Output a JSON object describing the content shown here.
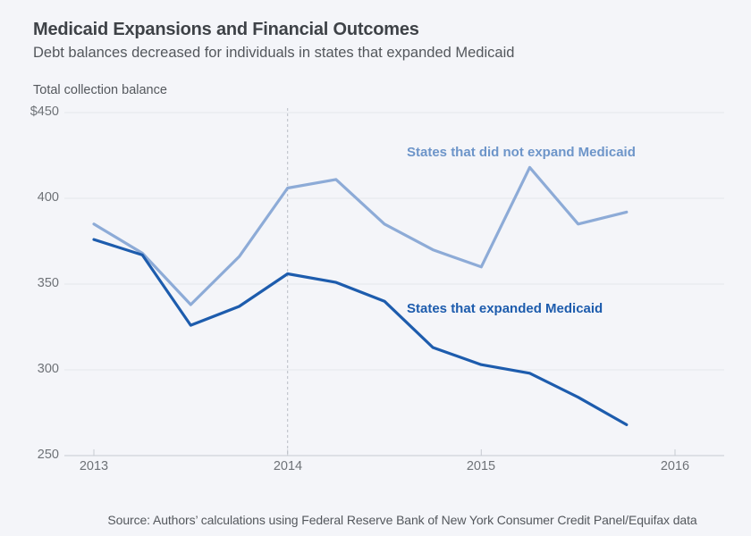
{
  "header": {
    "title": "Medicaid Expansions and Financial Outcomes",
    "subtitle": "Debt balances decreased for individuals in states that expanded Medicaid"
  },
  "chart_data": {
    "type": "line",
    "title": "Medicaid Expansions and Financial Outcomes",
    "subtitle": "Debt balances decreased for individuals in states that expanded Medicaid",
    "ylabel": "Total collection balance",
    "xlabel": "",
    "x": [
      2013,
      2013.25,
      2013.5,
      2013.75,
      2014,
      2014.25,
      2014.5,
      2014.75,
      2015,
      2015.25,
      2015.5,
      2015.75
    ],
    "series": [
      {
        "name": "States that did not expand Medicaid",
        "color": "#8dabd7",
        "label_color": "#6d95c9",
        "values": [
          385,
          368,
          338,
          366,
          406,
          411,
          385,
          370,
          360,
          418,
          385,
          392
        ]
      },
      {
        "name": "States that expanded Medicaid",
        "color": "#1d5cad",
        "label_color": "#1d5cad",
        "values": [
          376,
          367,
          326,
          337,
          356,
          351,
          340,
          313,
          303,
          298,
          284,
          268
        ]
      }
    ],
    "xlim": [
      2012.85,
      2016.25
    ],
    "ylim": [
      250,
      450
    ],
    "grid": "horizontal",
    "legend_position": "inline-labels",
    "y_ticks": [
      {
        "value": 450,
        "label": "$450"
      },
      {
        "value": 400,
        "label": "400"
      },
      {
        "value": 350,
        "label": "350"
      },
      {
        "value": 300,
        "label": "300"
      },
      {
        "value": 250,
        "label": "250"
      }
    ],
    "x_ticks": [
      {
        "value": 2013,
        "label": "2013"
      },
      {
        "value": 2014,
        "label": "2014"
      },
      {
        "value": 2015,
        "label": "2015"
      },
      {
        "value": 2016,
        "label": "2016"
      }
    ],
    "vline": {
      "x": 2014,
      "style": "dashed"
    },
    "colors": {
      "background": "#f4f5f9",
      "grid": "#e3e6ea",
      "axis": "#c6cad1",
      "vline": "#b9bdc5"
    }
  },
  "footer": {
    "source": "Source: Authors’ calculations using Federal Reserve Bank of New York Consumer Credit Panel/Equifax data"
  }
}
